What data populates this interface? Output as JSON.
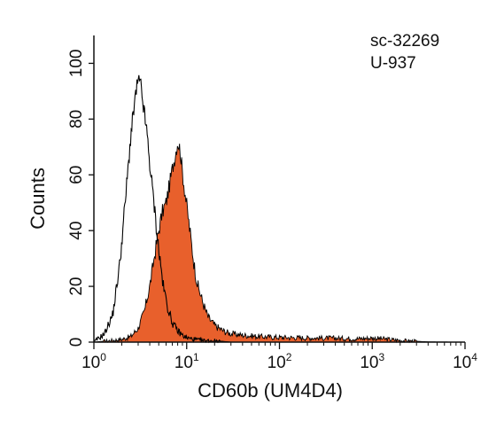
{
  "chart_data": {
    "type": "area",
    "xscale": "log",
    "xlabel": "CD60b (UM4D4)",
    "ylabel": "Counts",
    "xlim": [
      1,
      10000
    ],
    "ylim": [
      0,
      110
    ],
    "xticks": [
      {
        "base": "10",
        "exp": "0",
        "value": 1
      },
      {
        "base": "10",
        "exp": "1",
        "value": 10
      },
      {
        "base": "10",
        "exp": "2",
        "value": 100
      },
      {
        "base": "10",
        "exp": "3",
        "value": 1000
      },
      {
        "base": "10",
        "exp": "4",
        "value": 10000
      }
    ],
    "yticks": [
      "0",
      "20",
      "40",
      "60",
      "80",
      "100"
    ],
    "annotations": [
      "sc-32269",
      "U-937"
    ],
    "grid": false,
    "series": [
      {
        "style": "outline",
        "color": "#000000",
        "x": [
          1.0,
          1.3,
          1.6,
          1.9,
          2.2,
          2.5,
          2.8,
          3.0,
          3.2,
          3.4,
          3.7,
          4.0,
          4.5,
          5.0,
          5.6,
          6.3,
          7.0,
          8.0,
          9.0,
          10,
          12,
          15,
          20,
          30,
          60,
          100,
          300,
          1000,
          4000
        ],
        "y": [
          0,
          3,
          10,
          28,
          52,
          74,
          88,
          94,
          92,
          85,
          76,
          64,
          48,
          33,
          20,
          12,
          7,
          4,
          2.5,
          1.5,
          1,
          0.5,
          0.5,
          0,
          0,
          0,
          0,
          0,
          0
        ]
      },
      {
        "style": "filled",
        "color": "#E8602C",
        "x": [
          1.0,
          1.5,
          2.0,
          2.5,
          3.0,
          3.5,
          4.0,
          4.5,
          5.0,
          5.5,
          6.0,
          6.5,
          7.0,
          7.5,
          8.0,
          8.5,
          9.0,
          10,
          11,
          12,
          13,
          15,
          17,
          20,
          25,
          30,
          40,
          60,
          100,
          200,
          400,
          700,
          1000,
          1500,
          2000,
          3000,
          4000,
          10000
        ],
        "y": [
          0,
          0.5,
          1,
          2,
          5,
          11,
          20,
          31,
          40,
          47,
          50,
          56,
          62,
          67,
          72,
          69,
          61,
          49,
          38,
          28,
          21,
          14,
          9,
          6,
          4,
          3,
          2.5,
          2,
          1.7,
          1.5,
          1.4,
          1.2,
          1.5,
          1.0,
          0.6,
          0.3,
          0.1,
          0
        ]
      }
    ]
  }
}
